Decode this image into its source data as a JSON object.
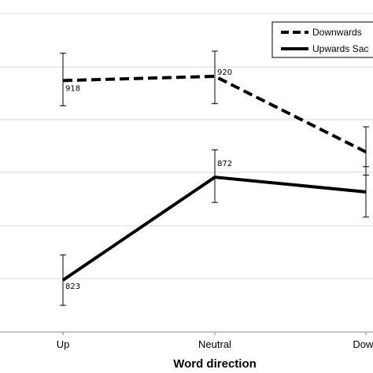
{
  "chart_data": {
    "type": "line",
    "xlabel": "Word direction",
    "categories": [
      "Up",
      "Neutral",
      "Down"
    ],
    "ylim": [
      805,
      940
    ],
    "grid": true,
    "legend_position": "top-right",
    "series": [
      {
        "name": "Downwards",
        "line_style": "dashed",
        "color": "#000000",
        "values": [
          918,
          920,
          884
        ],
        "error": [
          [
            906,
            931
          ],
          [
            907,
            932
          ],
          [
            873,
            896
          ]
        ],
        "labels": [
          "918",
          "920",
          ""
        ]
      },
      {
        "name": "Upwards Sac",
        "line_style": "solid",
        "color": "#000000",
        "values": [
          823,
          872,
          865
        ],
        "error": [
          [
            811,
            835
          ],
          [
            860,
            885
          ],
          [
            853,
            877
          ]
        ],
        "labels": [
          "823",
          "872",
          ""
        ]
      }
    ]
  }
}
